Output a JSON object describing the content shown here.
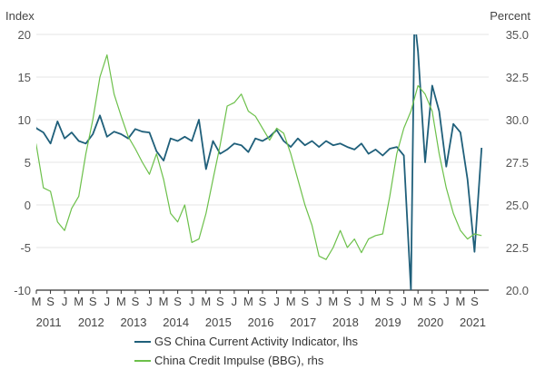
{
  "chart_data": {
    "type": "line",
    "ylabel_left": "Index",
    "ylabel_right": "Percent",
    "y_left_range": [
      -10,
      20
    ],
    "y_left_ticks": [
      "-10",
      "-5",
      "0",
      "5",
      "10",
      "15",
      "20"
    ],
    "y_right_range": [
      20.0,
      35.0
    ],
    "y_right_ticks": [
      "20.0",
      "22.5",
      "25.0",
      "27.5",
      "30.0",
      "32.5",
      "35.0"
    ],
    "grid": true,
    "legend_position": "bottom",
    "x_month_ticks": [
      "M",
      "S",
      "J",
      "M",
      "S",
      "J",
      "M",
      "S",
      "J",
      "M",
      "S",
      "J",
      "M",
      "S",
      "J",
      "M",
      "S",
      "J",
      "M",
      "S",
      "J",
      "M",
      "S",
      "J",
      "M",
      "S",
      "J",
      "M",
      "S",
      "J",
      "M",
      "S"
    ],
    "x_year_labels": [
      "2011",
      "2012",
      "2013",
      "2014",
      "2015",
      "2016",
      "2017",
      "2018",
      "2019",
      "2020",
      "2021"
    ],
    "series": [
      {
        "name": "GS China Current Activity Indicator, lhs",
        "axis": "left",
        "color": "#1f5f7a",
        "x": [
          "2011-01",
          "2011-03",
          "2011-05",
          "2011-07",
          "2011-09",
          "2011-11",
          "2012-01",
          "2012-03",
          "2012-05",
          "2012-07",
          "2012-09",
          "2012-11",
          "2013-01",
          "2013-03",
          "2013-05",
          "2013-07",
          "2013-09",
          "2013-11",
          "2014-01",
          "2014-03",
          "2014-05",
          "2014-07",
          "2014-09",
          "2014-11",
          "2015-01",
          "2015-03",
          "2015-05",
          "2015-07",
          "2015-09",
          "2015-11",
          "2016-01",
          "2016-03",
          "2016-05",
          "2016-07",
          "2016-09",
          "2016-11",
          "2017-01",
          "2017-03",
          "2017-05",
          "2017-07",
          "2017-09",
          "2017-11",
          "2018-01",
          "2018-03",
          "2018-05",
          "2018-07",
          "2018-09",
          "2018-11",
          "2019-01",
          "2019-03",
          "2019-05",
          "2019-07",
          "2019-09",
          "2019-11",
          "2020-01",
          "2020-02",
          "2020-03",
          "2020-05",
          "2020-07",
          "2020-09",
          "2020-11",
          "2021-01",
          "2021-03",
          "2021-05",
          "2021-07",
          "2021-09"
        ],
        "y": [
          10.5,
          9.0,
          8.5,
          7.2,
          9.8,
          7.8,
          8.5,
          7.5,
          7.2,
          8.3,
          10.5,
          8.0,
          8.6,
          8.3,
          7.8,
          8.9,
          8.6,
          8.5,
          6.3,
          5.2,
          7.8,
          7.5,
          8.0,
          7.5,
          10.0,
          4.2,
          7.5,
          6.0,
          6.5,
          7.2,
          7.0,
          6.2,
          7.8,
          7.5,
          8.0,
          8.8,
          7.5,
          6.8,
          7.8,
          7.0,
          7.5,
          6.8,
          7.5,
          7.0,
          7.2,
          6.8,
          6.5,
          7.2,
          6.0,
          6.5,
          5.8,
          6.6,
          6.8,
          5.8,
          -10.0,
          22.0,
          18.0,
          5.0,
          14.0,
          11.0,
          4.5,
          9.5,
          8.5,
          3.0,
          -5.5,
          6.7
        ]
      },
      {
        "name": "China Credit Impulse (BBG), rhs",
        "axis": "right",
        "color": "#6cc04a",
        "x": [
          "2011-01",
          "2011-03",
          "2011-05",
          "2011-07",
          "2011-09",
          "2011-11",
          "2012-01",
          "2012-03",
          "2012-05",
          "2012-07",
          "2012-09",
          "2012-11",
          "2013-01",
          "2013-03",
          "2013-05",
          "2013-07",
          "2013-09",
          "2013-11",
          "2014-01",
          "2014-03",
          "2014-05",
          "2014-07",
          "2014-09",
          "2014-11",
          "2015-01",
          "2015-03",
          "2015-05",
          "2015-07",
          "2015-09",
          "2015-11",
          "2016-01",
          "2016-03",
          "2016-05",
          "2016-07",
          "2016-09",
          "2016-11",
          "2017-01",
          "2017-03",
          "2017-05",
          "2017-07",
          "2017-09",
          "2017-11",
          "2018-01",
          "2018-03",
          "2018-05",
          "2018-07",
          "2018-09",
          "2018-11",
          "2019-01",
          "2019-03",
          "2019-05",
          "2019-07",
          "2019-09",
          "2019-11",
          "2020-01",
          "2020-03",
          "2020-05",
          "2020-07",
          "2020-09",
          "2020-11",
          "2021-01",
          "2021-03",
          "2021-05",
          "2021-07",
          "2021-09"
        ],
        "y": [
          30.2,
          28.5,
          26.0,
          25.8,
          24.0,
          23.5,
          24.8,
          25.5,
          28.0,
          30.0,
          32.5,
          33.8,
          31.5,
          30.2,
          29.0,
          28.3,
          27.5,
          26.8,
          28.0,
          26.5,
          24.5,
          24.0,
          25.0,
          22.8,
          23.0,
          24.5,
          26.5,
          28.5,
          30.8,
          31.0,
          31.5,
          30.5,
          30.2,
          29.5,
          28.8,
          29.5,
          29.2,
          28.0,
          26.5,
          25.0,
          23.8,
          22.0,
          21.8,
          22.5,
          23.5,
          22.5,
          23.0,
          22.2,
          23.0,
          23.2,
          23.3,
          25.5,
          28.0,
          29.5,
          30.5,
          32.0,
          31.5,
          30.5,
          28.0,
          26.0,
          24.5,
          23.5,
          23.0,
          23.3,
          23.2
        ]
      }
    ]
  }
}
